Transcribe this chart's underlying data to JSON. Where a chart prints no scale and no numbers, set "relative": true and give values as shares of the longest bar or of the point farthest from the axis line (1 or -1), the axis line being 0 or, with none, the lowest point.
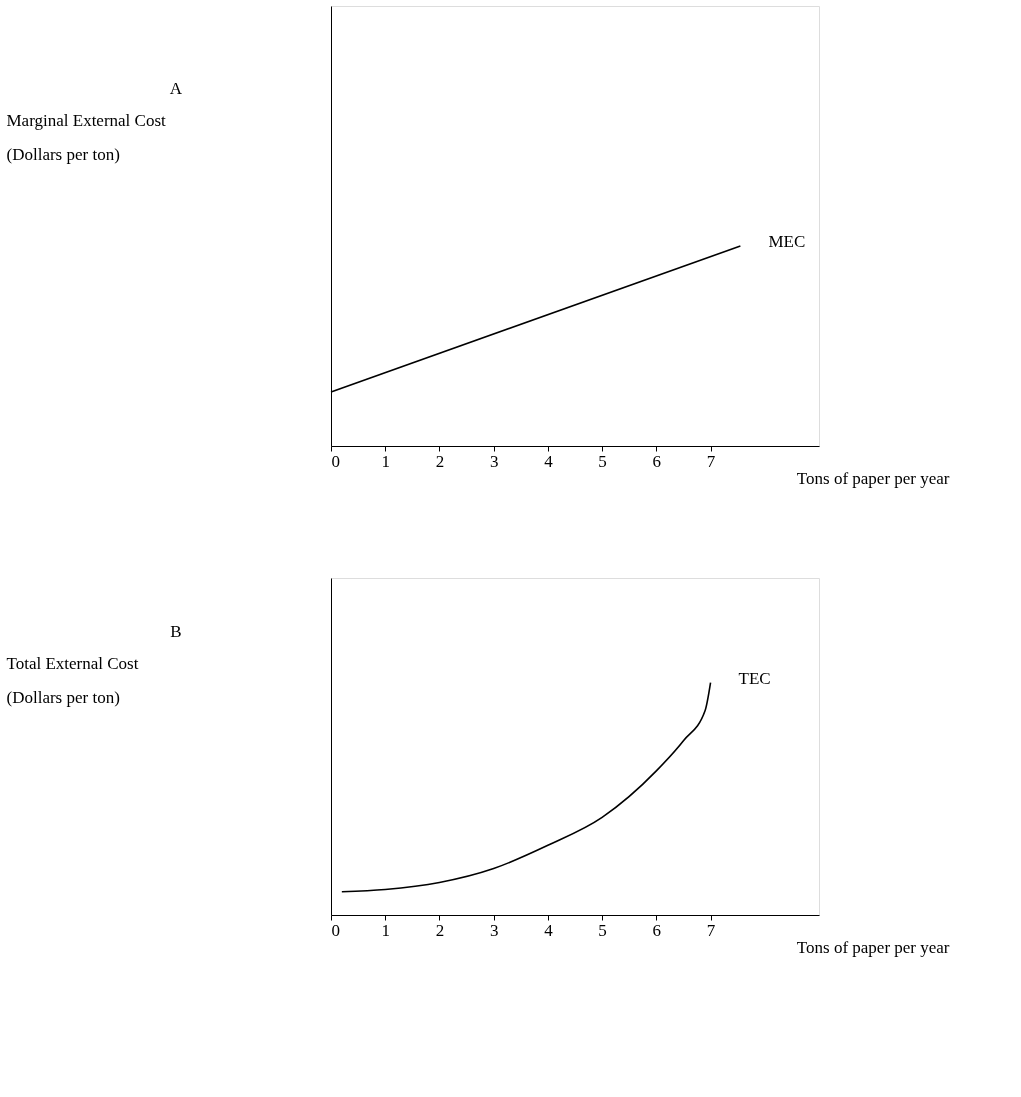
{
  "chart_data": [
    {
      "type": "line",
      "annotations": [
        "A"
      ],
      "ylabel": "Marginal External Cost (Dollars per ton)",
      "xlabel": "Tons of paper per year",
      "relative": true,
      "x": [
        0,
        7.55
      ],
      "xlim": [
        0,
        9
      ],
      "xticks": [
        0,
        1,
        2,
        3,
        4,
        5,
        6,
        7
      ],
      "tick_labels": "x",
      "grid": false,
      "series": [
        {
          "name": "MEC",
          "color": "#000000",
          "values": [
            0.27,
            1
          ]
        }
      ]
    },
    {
      "type": "line",
      "annotations": [
        "B"
      ],
      "ylabel": "Total External Cost (Dollars per ton)",
      "xlabel": "Tons of paper per year",
      "relative": true,
      "x": [
        0.2,
        1,
        2,
        3,
        4,
        5,
        6,
        6.5,
        6.9,
        7.0
      ],
      "xlim": [
        0,
        9
      ],
      "xticks": [
        0,
        1,
        2,
        3,
        4,
        5,
        6,
        7
      ],
      "tick_labels": "x",
      "grid": false,
      "series": [
        {
          "name": "TEC",
          "color": "#000000",
          "values": [
            0.1,
            0.11,
            0.14,
            0.2,
            0.3,
            0.42,
            0.62,
            0.75,
            0.88,
            1
          ]
        }
      ]
    }
  ]
}
